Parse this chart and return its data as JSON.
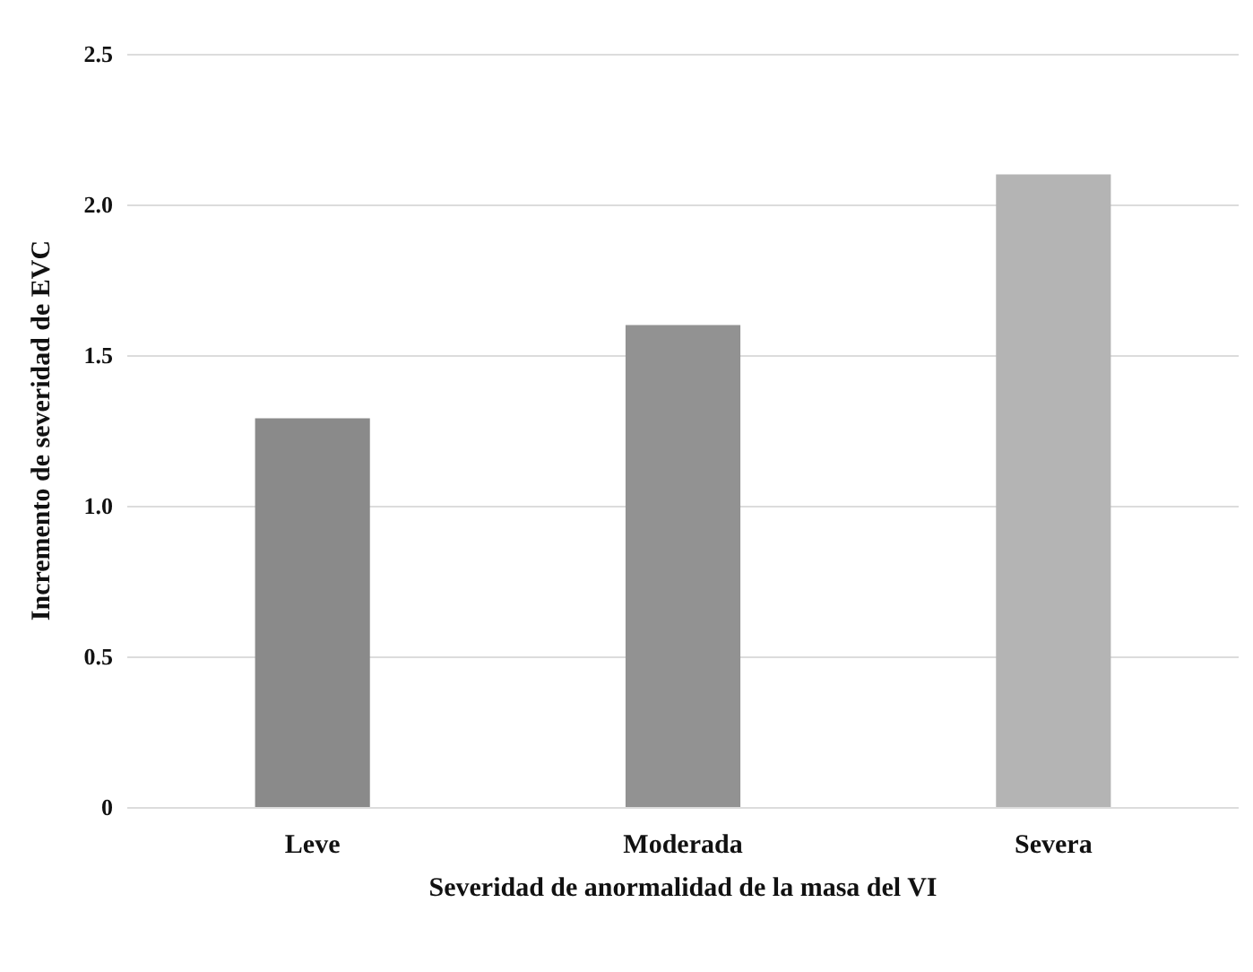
{
  "chart_data": {
    "type": "bar",
    "xlabel": "Severidad de anormalidad de la masa del VI",
    "ylabel": "Incremento de severidad de EVC",
    "categories": [
      "Leve",
      "Moderada",
      "Severa"
    ],
    "values": [
      1.29,
      1.6,
      2.1
    ],
    "colors": [
      "#8a8a8a",
      "#929292",
      "#b4b4b4"
    ],
    "ylim": [
      0,
      2.5
    ],
    "yticks": [
      0,
      {
        "value": 0.5,
        "label": "0.5"
      },
      {
        "value": 1,
        "label": "1.0"
      },
      {
        "value": 1.5,
        "label": "1.5"
      },
      {
        "value": 2,
        "label": "2.0"
      },
      {
        "value": 2.5,
        "label": "2.5"
      }
    ],
    "grid": "y"
  }
}
